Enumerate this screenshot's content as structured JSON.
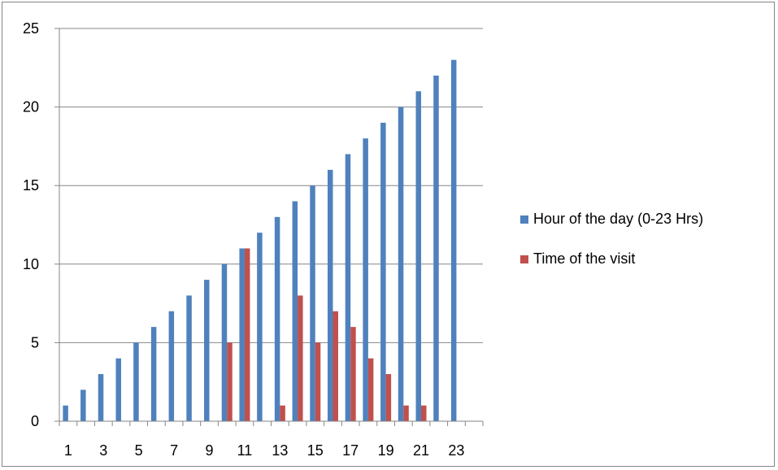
{
  "chart_data": {
    "type": "bar",
    "categories": [
      "1",
      "2",
      "3",
      "4",
      "5",
      "6",
      "7",
      "8",
      "9",
      "10",
      "11",
      "12",
      "13",
      "14",
      "15",
      "16",
      "17",
      "18",
      "19",
      "20",
      "21",
      "22",
      "23",
      "24"
    ],
    "x_tick_labels_shown": [
      "1",
      "3",
      "5",
      "7",
      "9",
      "11",
      "13",
      "15",
      "17",
      "19",
      "21",
      "23"
    ],
    "series": [
      {
        "name": "Hour of the day (0-23 Hrs)",
        "color": "#4F81BD",
        "values": [
          1,
          2,
          3,
          4,
          5,
          6,
          7,
          8,
          9,
          10,
          11,
          12,
          13,
          14,
          15,
          16,
          17,
          18,
          19,
          20,
          21,
          22,
          23,
          null
        ]
      },
      {
        "name": "Time of the visit",
        "color": "#C0504D",
        "values": [
          null,
          null,
          null,
          null,
          null,
          null,
          null,
          null,
          null,
          5,
          11,
          null,
          1,
          8,
          5,
          7,
          6,
          4,
          3,
          1,
          1,
          null,
          null,
          null
        ]
      }
    ],
    "ylim": [
      0,
      25
    ],
    "y_ticks": [
      0,
      5,
      10,
      15,
      20,
      25
    ],
    "title": "",
    "xlabel": "",
    "ylabel": "",
    "grid": true,
    "legend_position": "right"
  }
}
